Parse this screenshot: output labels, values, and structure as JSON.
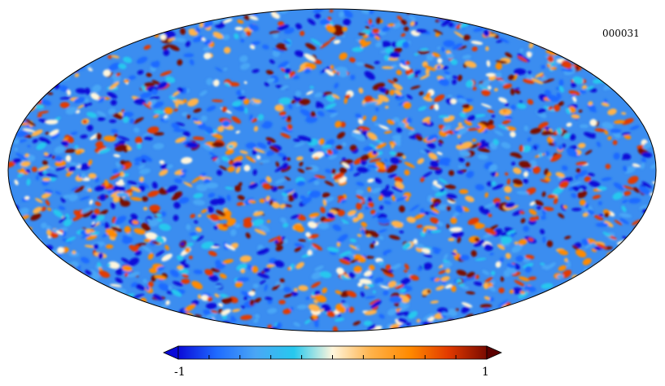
{
  "chart_data": {
    "type": "heatmap",
    "projection": "mollweide",
    "map_label": "000031",
    "colorbar": {
      "min_label": "-1",
      "max_label": "1",
      "vmin": -1,
      "vmax": 1,
      "colors": [
        "#0a0ad8",
        "#1f6bff",
        "#4aa6f5",
        "#27c8ee",
        "#fff6dc",
        "#ffb24a",
        "#ff8a00",
        "#e23a00",
        "#7a0a00"
      ]
    }
  }
}
